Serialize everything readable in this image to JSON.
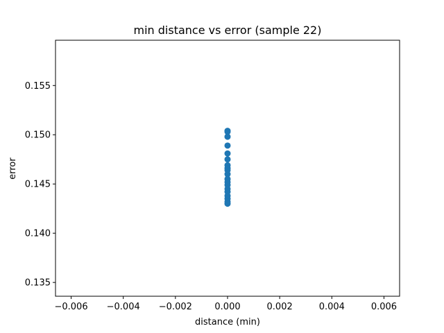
{
  "chart_data": {
    "type": "scatter",
    "title": "min distance vs error (sample 22)",
    "xlabel": "distance (min)",
    "ylabel": "error",
    "xlim": [
      -0.0066,
      0.0066
    ],
    "ylim": [
      0.1336,
      0.1596
    ],
    "xticks": [
      {
        "value": -0.006,
        "label": "−0.006"
      },
      {
        "value": -0.004,
        "label": "−0.004"
      },
      {
        "value": -0.002,
        "label": "−0.002"
      },
      {
        "value": 0.0,
        "label": "0.000"
      },
      {
        "value": 0.002,
        "label": "0.002"
      },
      {
        "value": 0.004,
        "label": "0.004"
      },
      {
        "value": 0.006,
        "label": "0.006"
      }
    ],
    "yticks": [
      {
        "value": 0.135,
        "label": "0.135"
      },
      {
        "value": 0.14,
        "label": "0.140"
      },
      {
        "value": 0.145,
        "label": "0.145"
      },
      {
        "value": 0.15,
        "label": "0.150"
      },
      {
        "value": 0.155,
        "label": "0.155"
      }
    ],
    "grid": false,
    "marker_color": "#1f77b4",
    "points": [
      {
        "x": 0.0,
        "y": 0.1504
      },
      {
        "x": 0.0,
        "y": 0.1503
      },
      {
        "x": 0.0,
        "y": 0.1498
      },
      {
        "x": 0.0,
        "y": 0.1489
      },
      {
        "x": 0.0,
        "y": 0.1481
      },
      {
        "x": 0.0,
        "y": 0.1475
      },
      {
        "x": 0.0,
        "y": 0.1469
      },
      {
        "x": 0.0,
        "y": 0.1466
      },
      {
        "x": 0.0,
        "y": 0.1464
      },
      {
        "x": 0.0,
        "y": 0.146
      },
      {
        "x": 0.0,
        "y": 0.1455
      },
      {
        "x": 0.0,
        "y": 0.1452
      },
      {
        "x": 0.0,
        "y": 0.1449
      },
      {
        "x": 0.0,
        "y": 0.1445
      },
      {
        "x": 0.0,
        "y": 0.1442
      },
      {
        "x": 0.0,
        "y": 0.1438
      },
      {
        "x": 0.0,
        "y": 0.1435
      },
      {
        "x": 0.0,
        "y": 0.1432
      },
      {
        "x": 0.0,
        "y": 0.143
      }
    ]
  }
}
